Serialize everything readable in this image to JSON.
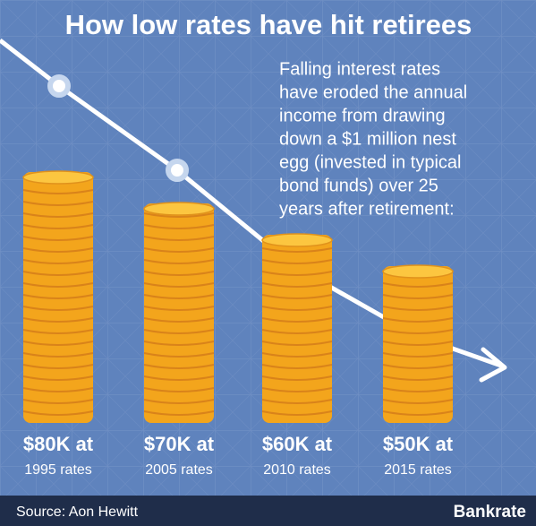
{
  "chart_data": {
    "type": "bar",
    "title": "How low rates have hit retirees",
    "description": [
      "Falling interest rates",
      "have eroded the annual",
      "income from drawing",
      "down a $1 million nest",
      "egg (invested in typical",
      "bond funds) over 25",
      "years after retirement:"
    ],
    "categories": [
      "1995 rates",
      "2005 rates",
      "2010 rates",
      "2015 rates"
    ],
    "values": [
      80,
      70,
      60,
      50
    ],
    "value_labels": [
      "$80K at",
      "$70K at",
      "$60K at",
      "$50K at"
    ],
    "color": "#f3a51c",
    "source": "Source: Aon Hewitt",
    "brand": "Bankrate"
  }
}
